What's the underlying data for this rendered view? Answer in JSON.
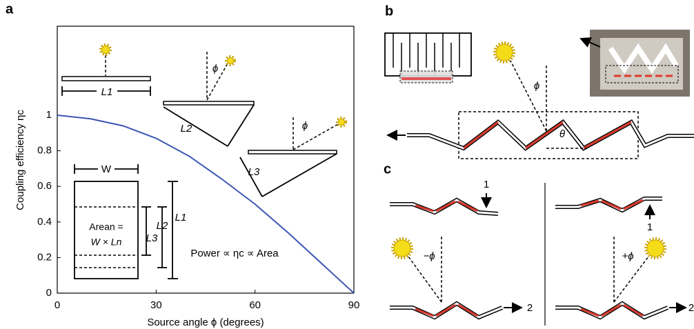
{
  "chart_data": {
    "type": "line",
    "x_label": "Source angle ϕ (degrees)",
    "y_label": "Coupling efficiency ηc",
    "x": [
      0,
      10,
      20,
      30,
      40,
      50,
      60,
      70,
      80,
      90
    ],
    "series": [
      {
        "color": "#3a55b4",
        "values": [
          1,
          0.98,
          0.94,
          0.87,
          0.77,
          0.64,
          0.5,
          0.34,
          0.17,
          0
        ]
      }
    ],
    "xlim": [
      0,
      90
    ],
    "ylim": [
      0,
      1.5
    ],
    "xticks": [
      0,
      30,
      60,
      90
    ],
    "yticks": [
      0,
      0.2,
      0.4,
      0.6,
      0.8,
      1
    ],
    "annotations": [
      "L1",
      "L2",
      "L3",
      "ϕ",
      "ϕ",
      "W",
      "Arean =",
      "W × Ln",
      "L2",
      "L3",
      "L1",
      "Power ∝ ηc ∝ Area"
    ]
  },
  "panels": {
    "a": "a",
    "b": {
      "label": "b",
      "texts": [
        "ϕ",
        "θ"
      ]
    },
    "c": {
      "label": "c",
      "texts": [
        "1",
        "−ϕ",
        "2",
        "1",
        "+ϕ",
        "2"
      ]
    }
  }
}
